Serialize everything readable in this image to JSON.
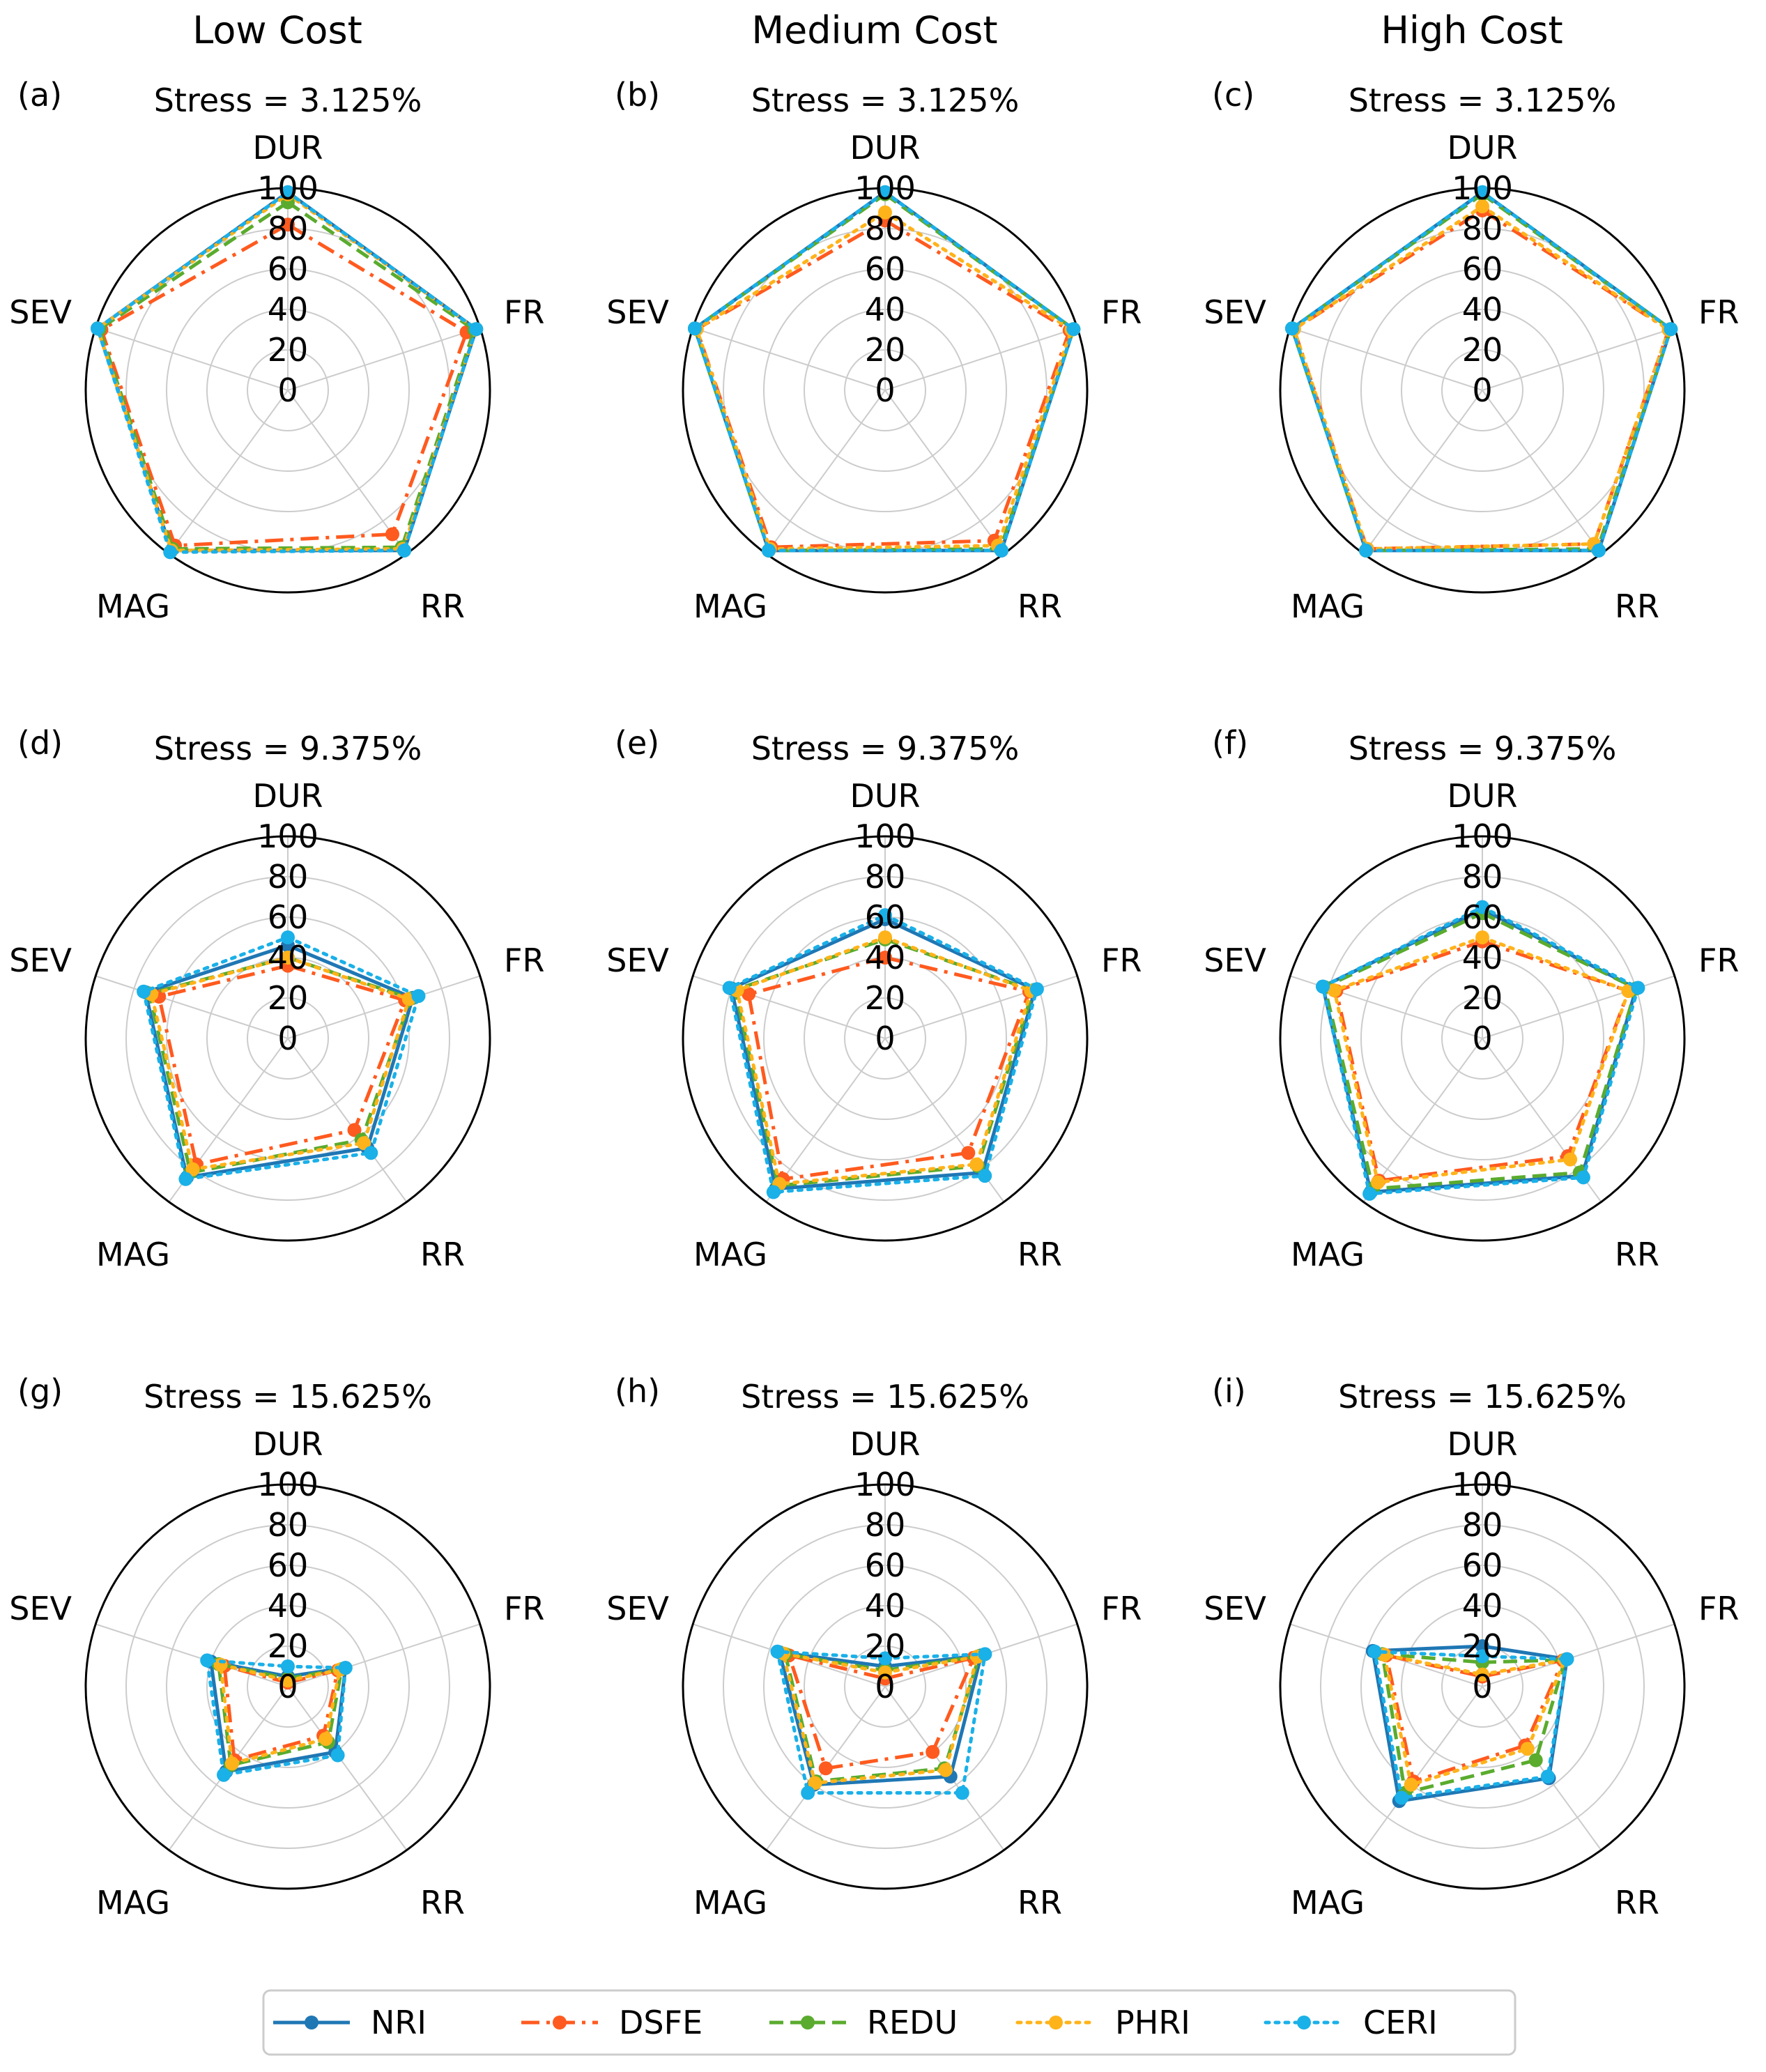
{
  "column_titles": [
    "Low Cost",
    "Medium Cost",
    "High Cost"
  ],
  "legend": {
    "items": [
      {
        "name": "NRI",
        "color": "#1f77b4",
        "dash": "solid"
      },
      {
        "name": "DSFE",
        "color": "#ff5a1f",
        "dash": "dashdot"
      },
      {
        "name": "REDU",
        "color": "#5aab2e",
        "dash": "dashed"
      },
      {
        "name": "PHRI",
        "color": "#ffb31a",
        "dash": "dotted"
      },
      {
        "name": "CERI",
        "color": "#1ab0e8",
        "dash": "dotted"
      }
    ]
  },
  "chart_data": [
    {
      "type": "radar",
      "panel": "(a)",
      "title": "Stress = 3.125%",
      "axes": [
        "DUR",
        "FR",
        "RR",
        "MAG",
        "SEV"
      ],
      "rlim": [
        0,
        100
      ],
      "ticks": [
        "0",
        "20",
        "40",
        "60",
        "80",
        "100"
      ],
      "series": [
        {
          "name": "NRI",
          "values": [
            98,
            98,
            98,
            98,
            99
          ]
        },
        {
          "name": "DSFE",
          "values": [
            82,
            93,
            88,
            95,
            97
          ]
        },
        {
          "name": "REDU",
          "values": [
            93,
            97,
            96,
            97,
            98
          ]
        },
        {
          "name": "PHRI",
          "values": [
            97,
            98,
            97,
            98,
            99
          ]
        },
        {
          "name": "CERI",
          "values": [
            98,
            98,
            98,
            99,
            99
          ]
        }
      ]
    },
    {
      "type": "radar",
      "panel": "(b)",
      "title": "Stress = 3.125%",
      "axes": [
        "DUR",
        "FR",
        "RR",
        "MAG",
        "SEV"
      ],
      "rlim": [
        0,
        100
      ],
      "ticks": [
        "0",
        "20",
        "40",
        "60",
        "80",
        "100"
      ],
      "series": [
        {
          "name": "NRI",
          "values": [
            98,
            98,
            98,
            98,
            99
          ]
        },
        {
          "name": "DSFE",
          "values": [
            84,
            96,
            92,
            96,
            98
          ]
        },
        {
          "name": "REDU",
          "values": [
            97,
            98,
            97,
            98,
            99
          ]
        },
        {
          "name": "PHRI",
          "values": [
            88,
            97,
            95,
            97,
            98
          ]
        },
        {
          "name": "CERI",
          "values": [
            98,
            98,
            98,
            98,
            99
          ]
        }
      ]
    },
    {
      "type": "radar",
      "panel": "(c)",
      "title": "Stress = 3.125%",
      "axes": [
        "DUR",
        "FR",
        "RR",
        "MAG",
        "SEV"
      ],
      "rlim": [
        0,
        100
      ],
      "ticks": [
        "0",
        "20",
        "40",
        "60",
        "80",
        "100"
      ],
      "series": [
        {
          "name": "NRI",
          "values": [
            98,
            98,
            98,
            98,
            99
          ]
        },
        {
          "name": "DSFE",
          "values": [
            89,
            97,
            94,
            97,
            98
          ]
        },
        {
          "name": "REDU",
          "values": [
            97,
            98,
            97,
            98,
            99
          ]
        },
        {
          "name": "PHRI",
          "values": [
            91,
            97,
            94,
            97,
            98
          ]
        },
        {
          "name": "CERI",
          "values": [
            98,
            98,
            98,
            98,
            99
          ]
        }
      ]
    },
    {
      "type": "radar",
      "panel": "(d)",
      "title": "Stress = 9.375%",
      "axes": [
        "DUR",
        "FR",
        "RR",
        "MAG",
        "SEV"
      ],
      "rlim": [
        0,
        100
      ],
      "ticks": [
        "0",
        "20",
        "40",
        "60",
        "80",
        "100"
      ],
      "series": [
        {
          "name": "NRI",
          "values": [
            46,
            65,
            67,
            85,
            74
          ]
        },
        {
          "name": "DSFE",
          "values": [
            36,
            61,
            56,
            77,
            67
          ]
        },
        {
          "name": "REDU",
          "values": [
            40,
            64,
            62,
            82,
            72
          ]
        },
        {
          "name": "PHRI",
          "values": [
            40,
            63,
            64,
            80,
            71
          ]
        },
        {
          "name": "CERI",
          "values": [
            50,
            68,
            70,
            86,
            75
          ]
        }
      ]
    },
    {
      "type": "radar",
      "panel": "(e)",
      "title": "Stress = 9.375%",
      "axes": [
        "DUR",
        "FR",
        "RR",
        "MAG",
        "SEV"
      ],
      "rlim": [
        0,
        100
      ],
      "ticks": [
        "0",
        "20",
        "40",
        "60",
        "80",
        "100"
      ],
      "series": [
        {
          "name": "NRI",
          "values": [
            59,
            78,
            82,
            92,
            80
          ]
        },
        {
          "name": "DSFE",
          "values": [
            40,
            75,
            70,
            86,
            71
          ]
        },
        {
          "name": "REDU",
          "values": [
            49,
            77,
            78,
            90,
            78
          ]
        },
        {
          "name": "PHRI",
          "values": [
            50,
            76,
            77,
            89,
            77
          ]
        },
        {
          "name": "CERI",
          "values": [
            61,
            79,
            84,
            94,
            81
          ]
        }
      ]
    },
    {
      "type": "radar",
      "panel": "(f)",
      "title": "Stress = 9.375%",
      "axes": [
        "DUR",
        "FR",
        "RR",
        "MAG",
        "SEV"
      ],
      "rlim": [
        0,
        100
      ],
      "ticks": [
        "0",
        "20",
        "40",
        "60",
        "80",
        "100"
      ],
      "series": [
        {
          "name": "NRI",
          "values": [
            64,
            80,
            84,
            94,
            83
          ]
        },
        {
          "name": "DSFE",
          "values": [
            48,
            76,
            72,
            87,
            76
          ]
        },
        {
          "name": "REDU",
          "values": [
            62,
            80,
            82,
            92,
            82
          ]
        },
        {
          "name": "PHRI",
          "values": [
            50,
            76,
            74,
            88,
            77
          ]
        },
        {
          "name": "CERI",
          "values": [
            65,
            81,
            85,
            95,
            83
          ]
        }
      ]
    },
    {
      "type": "radar",
      "panel": "(g)",
      "title": "Stress = 15.625%",
      "axes": [
        "DUR",
        "FR",
        "RR",
        "MAG",
        "SEV"
      ],
      "rlim": [
        0,
        100
      ],
      "ticks": [
        "0",
        "20",
        "40",
        "60",
        "80",
        "100"
      ],
      "series": [
        {
          "name": "NRI",
          "values": [
            5,
            30,
            40,
            52,
            40
          ]
        },
        {
          "name": "DSFE",
          "values": [
            2,
            26,
            30,
            45,
            33
          ]
        },
        {
          "name": "REDU",
          "values": [
            4,
            28,
            34,
            48,
            36
          ]
        },
        {
          "name": "PHRI",
          "values": [
            3,
            27,
            32,
            47,
            35
          ]
        },
        {
          "name": "CERI",
          "values": [
            10,
            30,
            42,
            54,
            42
          ]
        }
      ]
    },
    {
      "type": "radar",
      "panel": "(h)",
      "title": "Stress = 15.625%",
      "axes": [
        "DUR",
        "FR",
        "RR",
        "MAG",
        "SEV"
      ],
      "rlim": [
        0,
        100
      ],
      "ticks": [
        "0",
        "20",
        "40",
        "60",
        "80",
        "100"
      ],
      "series": [
        {
          "name": "NRI",
          "values": [
            10,
            50,
            55,
            60,
            55
          ]
        },
        {
          "name": "DSFE",
          "values": [
            4,
            46,
            40,
            50,
            50
          ]
        },
        {
          "name": "REDU",
          "values": [
            8,
            49,
            50,
            58,
            52
          ]
        },
        {
          "name": "PHRI",
          "values": [
            7,
            48,
            51,
            59,
            53
          ]
        },
        {
          "name": "CERI",
          "values": [
            14,
            52,
            65,
            65,
            56
          ]
        }
      ]
    },
    {
      "type": "radar",
      "panel": "(i)",
      "title": "Stress = 15.625%",
      "axes": [
        "DUR",
        "FR",
        "RR",
        "MAG",
        "SEV"
      ],
      "rlim": [
        0,
        100
      ],
      "ticks": [
        "0",
        "20",
        "40",
        "60",
        "80",
        "100"
      ],
      "series": [
        {
          "name": "NRI",
          "values": [
            20,
            44,
            56,
            70,
            57
          ]
        },
        {
          "name": "DSFE",
          "values": [
            5,
            42,
            36,
            58,
            50
          ]
        },
        {
          "name": "REDU",
          "values": [
            12,
            43,
            45,
            65,
            52
          ]
        },
        {
          "name": "PHRI",
          "values": [
            6,
            43,
            38,
            60,
            51
          ]
        },
        {
          "name": "CERI",
          "values": [
            15,
            44,
            55,
            68,
            56
          ]
        }
      ]
    }
  ]
}
